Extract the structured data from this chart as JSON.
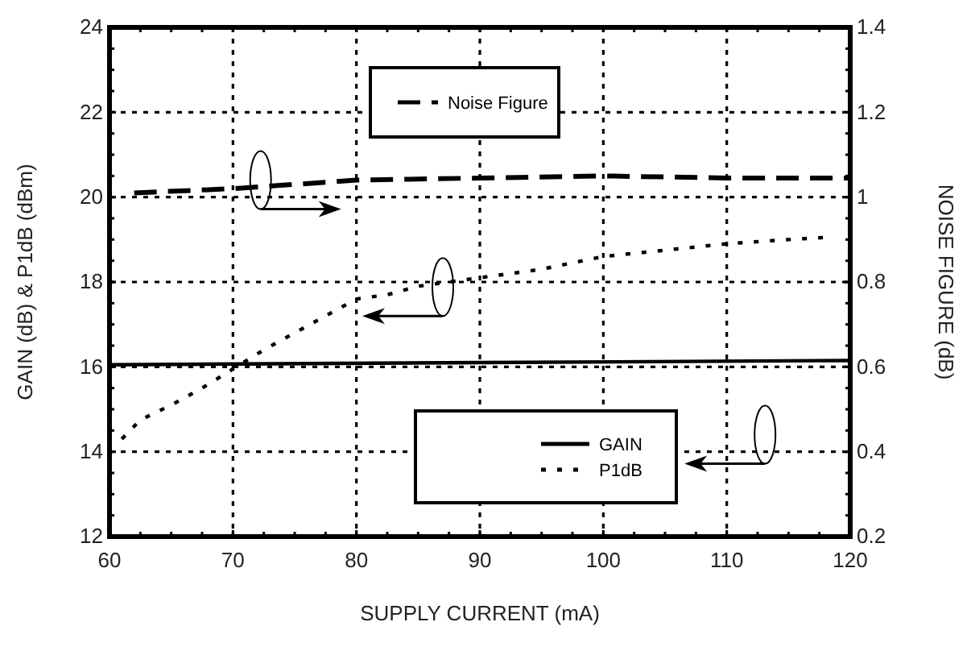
{
  "chart_data": {
    "type": "line",
    "xlabel": "SUPPLY CURRENT (mA)",
    "ylabel": "GAIN (dB) & P1dB (dBm)",
    "y2label": "NOISE FIGURE (dB)",
    "xlim": [
      60,
      120
    ],
    "xticks": [
      60,
      70,
      80,
      90,
      100,
      110,
      120
    ],
    "ylim": [
      12,
      24
    ],
    "yticks": [
      12,
      14,
      16,
      18,
      20,
      22,
      24
    ],
    "y2lim": [
      0.2,
      1.4
    ],
    "y2ticks": [
      0.2,
      0.4,
      0.6,
      0.8,
      1,
      1.2,
      1.4
    ],
    "grid": true,
    "legend": "bottom right",
    "marker": "none",
    "series": [
      {
        "name": "Noise Figure",
        "color": "#000000",
        "axis": "y2",
        "line_style": "dashed",
        "x": [
          62,
          70,
          80,
          90,
          100,
          110,
          120
        ],
        "values": [
          1.01,
          1.02,
          1.04,
          1.045,
          1.05,
          1.045,
          1.045
        ]
      },
      {
        "name": "GAIN",
        "color": "#000000",
        "axis": "y",
        "line_style": "solid",
        "x": [
          60,
          90,
          120
        ],
        "values": [
          16.05,
          16.1,
          16.15
        ]
      },
      {
        "name": "P1dB",
        "color": "#000000",
        "axis": "y",
        "line_style": "dotted",
        "x": [
          61,
          62.5,
          65,
          67.5,
          72.5,
          75,
          77.5,
          80,
          82.5,
          85,
          87.5,
          90,
          95,
          100,
          105,
          110,
          115,
          118
        ],
        "values": [
          14.3,
          14.75,
          15.1,
          15.5,
          16.4,
          16.8,
          17.2,
          17.6,
          17.7,
          17.9,
          18.0,
          18.1,
          18.3,
          18.6,
          18.75,
          18.9,
          19.0,
          19.05
        ]
      }
    ]
  }
}
